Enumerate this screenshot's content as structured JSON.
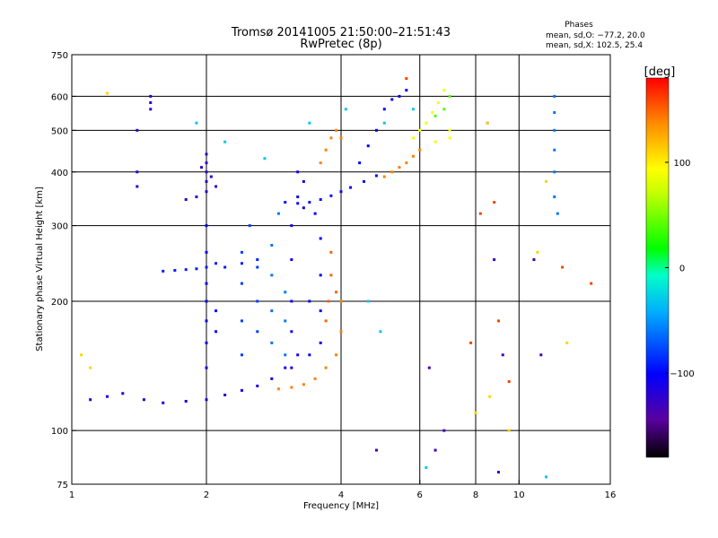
{
  "chart_data": {
    "type": "scatter",
    "title": "Tromsø 20141005 21:50:00–21:51:43",
    "subtitle": "RwPretec (8p)",
    "stats_title": "Phases",
    "stats": [
      "mean, sd,O: −77.2, 20.0",
      "mean, sd,X: 102.5, 25.4"
    ],
    "xlabel": "Frequency [MHz]",
    "ylabel": "Stationary phase Virtual Height [km]",
    "x_scale": "log",
    "y_scale": "log",
    "xlim": [
      1,
      16
    ],
    "ylim": [
      75,
      750
    ],
    "x_ticks": [
      1,
      2,
      4,
      6,
      8,
      10,
      16
    ],
    "x_tick_labels": [
      "1",
      "2",
      "4",
      "6",
      "8",
      "10",
      "16"
    ],
    "y_ticks": [
      75,
      100,
      200,
      300,
      400,
      500,
      600,
      750
    ],
    "y_tick_labels": [
      "75",
      "100",
      "200",
      "300",
      "400",
      "500",
      "600",
      "750"
    ],
    "grid_x": [
      2,
      4,
      6,
      8,
      10
    ],
    "grid_y": [
      100,
      200,
      300,
      400,
      500,
      600
    ],
    "grid": true,
    "colorbar": {
      "label": "[deg]",
      "range": [
        -180,
        180
      ],
      "ticks": [
        100,
        0,
        -100
      ],
      "tick_labels": [
        "100",
        "0",
        "−100"
      ],
      "colormap": "rainbow"
    },
    "series": [
      {
        "phase_deg": -110,
        "points": [
          [
            1.1,
            118
          ],
          [
            1.2,
            120
          ],
          [
            1.3,
            122
          ],
          [
            1.45,
            118
          ],
          [
            1.6,
            116
          ],
          [
            1.8,
            117
          ],
          [
            2.0,
            118
          ],
          [
            2.2,
            121
          ],
          [
            2.4,
            124
          ],
          [
            2.6,
            127
          ],
          [
            2.8,
            132
          ],
          [
            3.0,
            140
          ],
          [
            3.2,
            150
          ]
        ]
      },
      {
        "phase_deg": -90,
        "points": [
          [
            1.6,
            235
          ],
          [
            1.7,
            236
          ],
          [
            1.8,
            237
          ],
          [
            1.9,
            238
          ],
          [
            2.0,
            240
          ],
          [
            2.1,
            245
          ],
          [
            2.2,
            240
          ],
          [
            2.4,
            245
          ],
          [
            2.6,
            250
          ]
        ]
      },
      {
        "phase_deg": -120,
        "points": [
          [
            1.8,
            345
          ],
          [
            1.9,
            350
          ],
          [
            2.0,
            360
          ],
          [
            2.0,
            380
          ],
          [
            2.0,
            400
          ],
          [
            2.0,
            420
          ],
          [
            2.0,
            440
          ],
          [
            1.95,
            410
          ],
          [
            2.05,
            390
          ],
          [
            2.1,
            370
          ]
        ]
      },
      {
        "phase_deg": -100,
        "points": [
          [
            2.0,
            140
          ],
          [
            2.0,
            160
          ],
          [
            2.0,
            180
          ],
          [
            2.0,
            200
          ],
          [
            2.0,
            220
          ],
          [
            2.0,
            260
          ],
          [
            2.0,
            300
          ],
          [
            2.1,
            170
          ],
          [
            2.1,
            190
          ]
        ]
      },
      {
        "phase_deg": -80,
        "points": [
          [
            2.4,
            150
          ],
          [
            2.4,
            180
          ],
          [
            2.4,
            220
          ],
          [
            2.4,
            260
          ],
          [
            2.5,
            300
          ],
          [
            2.6,
            170
          ],
          [
            2.6,
            200
          ],
          [
            2.6,
            240
          ]
        ]
      },
      {
        "phase_deg": -60,
        "points": [
          [
            2.8,
            160
          ],
          [
            2.8,
            190
          ],
          [
            2.8,
            230
          ],
          [
            2.8,
            270
          ],
          [
            2.9,
            320
          ],
          [
            3.0,
            150
          ],
          [
            3.0,
            180
          ],
          [
            3.0,
            210
          ]
        ]
      },
      {
        "phase_deg": -110,
        "points": [
          [
            3.1,
            140
          ],
          [
            3.1,
            170
          ],
          [
            3.1,
            200
          ],
          [
            3.1,
            250
          ],
          [
            3.1,
            300
          ],
          [
            3.2,
            350
          ],
          [
            3.2,
            400
          ],
          [
            3.3,
            380
          ],
          [
            3.3,
            330
          ]
        ]
      },
      {
        "phase_deg": -95,
        "points": [
          [
            3.0,
            340
          ],
          [
            3.2,
            338
          ],
          [
            3.4,
            340
          ],
          [
            3.6,
            345
          ],
          [
            3.8,
            352
          ],
          [
            4.0,
            360
          ],
          [
            4.2,
            368
          ],
          [
            4.5,
            380
          ],
          [
            4.8,
            392
          ]
        ]
      },
      {
        "phase_deg": -100,
        "points": [
          [
            3.6,
            160
          ],
          [
            3.6,
            190
          ],
          [
            3.6,
            230
          ],
          [
            3.6,
            280
          ],
          [
            3.5,
            320
          ],
          [
            3.4,
            200
          ],
          [
            3.4,
            150
          ]
        ]
      },
      {
        "phase_deg": 140,
        "points": [
          [
            2.9,
            125
          ],
          [
            3.1,
            126
          ],
          [
            3.3,
            128
          ],
          [
            3.5,
            132
          ],
          [
            3.7,
            140
          ],
          [
            3.9,
            150
          ],
          [
            4.0,
            170
          ],
          [
            4.0,
            200
          ]
        ]
      },
      {
        "phase_deg": 150,
        "points": [
          [
            3.7,
            180
          ],
          [
            3.75,
            200
          ],
          [
            3.8,
            230
          ],
          [
            3.8,
            260
          ],
          [
            3.9,
            210
          ]
        ]
      },
      {
        "phase_deg": 140,
        "points": [
          [
            3.6,
            420
          ],
          [
            3.7,
            450
          ],
          [
            3.8,
            480
          ],
          [
            3.9,
            500
          ],
          [
            4.0,
            480
          ]
        ]
      },
      {
        "phase_deg": 140,
        "points": [
          [
            5.0,
            390
          ],
          [
            5.2,
            400
          ],
          [
            5.4,
            410
          ],
          [
            5.6,
            420
          ],
          [
            5.8,
            435
          ],
          [
            6.0,
            450
          ]
        ]
      },
      {
        "phase_deg": 90,
        "points": [
          [
            5.8,
            480
          ],
          [
            6.0,
            500
          ],
          [
            6.2,
            520
          ],
          [
            6.4,
            550
          ],
          [
            6.6,
            580
          ],
          [
            6.8,
            620
          ],
          [
            7.0,
            500
          ],
          [
            7.0,
            480
          ],
          [
            6.5,
            470
          ]
        ]
      },
      {
        "phase_deg": 40,
        "points": [
          [
            6.5,
            540
          ],
          [
            6.8,
            560
          ],
          [
            7.0,
            600
          ]
        ]
      },
      {
        "phase_deg": -100,
        "points": [
          [
            4.4,
            420
          ],
          [
            4.6,
            460
          ],
          [
            4.8,
            500
          ],
          [
            5.0,
            560
          ],
          [
            5.2,
            590
          ],
          [
            5.4,
            600
          ],
          [
            5.6,
            620
          ]
        ]
      },
      {
        "phase_deg": -60,
        "points": [
          [
            12.0,
            600
          ],
          [
            12.0,
            550
          ],
          [
            12.0,
            500
          ],
          [
            12.0,
            450
          ],
          [
            12.0,
            400
          ],
          [
            12.0,
            350
          ],
          [
            12.2,
            320
          ]
        ]
      },
      {
        "phase_deg": -120,
        "points": [
          [
            1.5,
            600
          ],
          [
            1.5,
            580
          ],
          [
            1.5,
            560
          ],
          [
            1.4,
            500
          ],
          [
            1.4,
            400
          ],
          [
            1.4,
            370
          ]
        ]
      },
      {
        "phase_deg": -130,
        "points": [
          [
            8.5,
            520
          ],
          [
            8.8,
            250
          ],
          [
            9.0,
            80
          ],
          [
            9.2,
            150
          ],
          [
            10.8,
            250
          ],
          [
            11.2,
            150
          ],
          [
            6.3,
            140
          ],
          [
            6.8,
            100
          ],
          [
            6.5,
            90
          ],
          [
            4.8,
            90
          ]
        ]
      },
      {
        "phase_deg": 160,
        "points": [
          [
            8.2,
            320
          ],
          [
            8.8,
            340
          ],
          [
            9.0,
            180
          ],
          [
            9.5,
            130
          ],
          [
            14.5,
            220
          ],
          [
            12.5,
            240
          ],
          [
            7.8,
            160
          ],
          [
            5.6,
            660
          ]
        ]
      },
      {
        "phase_deg": 110,
        "points": [
          [
            1.2,
            610
          ],
          [
            1.05,
            150
          ],
          [
            1.1,
            140
          ],
          [
            8.5,
            520
          ],
          [
            8.0,
            110
          ],
          [
            8.6,
            120
          ],
          [
            9.5,
            100
          ],
          [
            11.0,
            260
          ],
          [
            11.5,
            380
          ],
          [
            12.8,
            160
          ]
        ]
      },
      {
        "phase_deg": -30,
        "points": [
          [
            1.9,
            520
          ],
          [
            2.2,
            470
          ],
          [
            2.7,
            430
          ],
          [
            3.4,
            520
          ],
          [
            4.1,
            560
          ],
          [
            5.0,
            520
          ],
          [
            5.8,
            560
          ],
          [
            4.6,
            200
          ],
          [
            4.9,
            170
          ],
          [
            6.2,
            82
          ],
          [
            11.5,
            78
          ]
        ]
      }
    ]
  }
}
